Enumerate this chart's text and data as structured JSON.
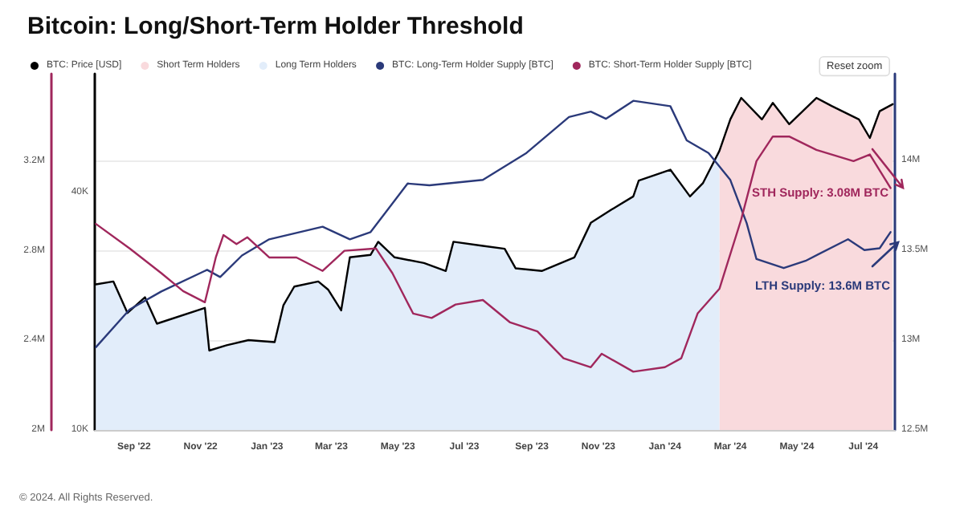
{
  "chart_data": {
    "type": "line",
    "title": "Bitcoin: Long/Short-Term Holder Threshold",
    "annotations": [
      "STH Supply: 3.08M BTC",
      "LTH Supply: 13.6M BTC",
      "Reset zoom",
      "© 2024. All Rights Reserved."
    ],
    "xlim": [
      "2022-07-27",
      "2024-07-30"
    ],
    "xticks": [
      {
        "value": "2022-09-01",
        "label": "Sep '22"
      },
      {
        "value": "2022-11-01",
        "label": "Nov '22"
      },
      {
        "value": "2023-01-01",
        "label": "Jan '23"
      },
      {
        "value": "2023-03-01",
        "label": "Mar '23"
      },
      {
        "value": "2023-05-01",
        "label": "May '23"
      },
      {
        "value": "2023-07-01",
        "label": "Jul '23"
      },
      {
        "value": "2023-09-01",
        "label": "Sep '23"
      },
      {
        "value": "2023-11-01",
        "label": "Nov '23"
      },
      {
        "value": "2024-01-01",
        "label": "Jan '24"
      },
      {
        "value": "2024-03-01",
        "label": "Mar '24"
      },
      {
        "value": "2024-05-01",
        "label": "May '24"
      },
      {
        "value": "2024-07-01",
        "label": "Jul '24"
      }
    ],
    "ylim": [
      2,
      3.59
    ],
    "yticks": [
      {
        "value": 2,
        "label": "2M"
      },
      {
        "value": 2.4,
        "label": "2.4M"
      },
      {
        "value": 2.8,
        "label": "2.8M"
      },
      {
        "value": 3.2,
        "label": "3.2M"
      }
    ],
    "y2lim": [
      10000,
      80000
    ],
    "y2ticks": [
      {
        "value": 10000,
        "label": "10K"
      },
      {
        "value": 40000,
        "label": "40K"
      }
    ],
    "y3lim": [
      12.5,
      14.48
    ],
    "y3ticks": [
      {
        "value": 12.5,
        "label": "12.5M"
      },
      {
        "value": 13,
        "label": "13M"
      },
      {
        "value": 13.5,
        "label": "13.5M"
      },
      {
        "value": 14,
        "label": "14M"
      }
    ],
    "log": "y2",
    "grid": "y",
    "legend": "top left",
    "marker": "none",
    "series": [
      {
        "name": "BTC: Price [USD]",
        "color": "#000000",
        "axis": "y2",
        "x": [
          "2022-07-28",
          "2022-08-13",
          "2022-08-26",
          "2022-09-11",
          "2022-09-22",
          "2022-11-05",
          "2022-11-09",
          "2022-11-25",
          "2022-12-15",
          "2023-01-08",
          "2023-01-16",
          "2023-01-26",
          "2023-02-17",
          "2023-02-26",
          "2023-03-10",
          "2023-03-18",
          "2023-04-06",
          "2023-04-13",
          "2023-04-28",
          "2023-05-25",
          "2023-06-14",
          "2023-06-21",
          "2023-07-18",
          "2023-08-07",
          "2023-08-17",
          "2023-09-10",
          "2023-10-10",
          "2023-10-25",
          "2023-11-13",
          "2023-12-03",
          "2023-12-08",
          "2024-01-06",
          "2024-01-24",
          "2024-02-05",
          "2024-02-20",
          "2024-03-01",
          "2024-03-11",
          "2024-03-30",
          "2024-04-09",
          "2024-04-24",
          "2024-05-19",
          "2024-06-02",
          "2024-06-27",
          "2024-07-07",
          "2024-07-16",
          "2024-07-28"
        ],
        "values": [
          23400,
          23800,
          19800,
          21700,
          18600,
          20400,
          15900,
          16400,
          16900,
          16700,
          20700,
          23100,
          23800,
          22700,
          20100,
          27400,
          27800,
          30000,
          27400,
          26500,
          25300,
          30000,
          29300,
          28800,
          25700,
          25300,
          27400,
          33500,
          36200,
          39100,
          42900,
          45700,
          39100,
          42300,
          51000,
          61300,
          69500,
          61300,
          67500,
          59600,
          69500,
          66300,
          61300,
          55000,
          64300,
          67000
        ]
      },
      {
        "name": "Short Term Holders",
        "color": "#f9dadd",
        "type": "area",
        "axis": "y2",
        "x": [
          "2024-02-20",
          "2024-03-01",
          "2024-03-11",
          "2024-03-30",
          "2024-04-09",
          "2024-04-24",
          "2024-05-19",
          "2024-06-02",
          "2024-06-27",
          "2024-07-07",
          "2024-07-16",
          "2024-07-28"
        ],
        "values": [
          51000,
          61300,
          69500,
          61300,
          67500,
          59600,
          69500,
          66300,
          61300,
          55000,
          64300,
          67000
        ]
      },
      {
        "name": "Long Term Holders",
        "color": "#e2edfa",
        "type": "area",
        "axis": "y2",
        "x": [
          "2022-07-28",
          "2022-08-13",
          "2022-08-26",
          "2022-09-11",
          "2022-09-22",
          "2022-11-05",
          "2022-11-09",
          "2022-11-25",
          "2022-12-15",
          "2023-01-08",
          "2023-01-16",
          "2023-01-26",
          "2023-02-17",
          "2023-02-26",
          "2023-03-10",
          "2023-03-18",
          "2023-04-06",
          "2023-04-13",
          "2023-04-28",
          "2023-05-25",
          "2023-06-14",
          "2023-06-21",
          "2023-07-18",
          "2023-08-07",
          "2023-08-17",
          "2023-09-10",
          "2023-10-10",
          "2023-10-25",
          "2023-11-13",
          "2023-12-03",
          "2023-12-08",
          "2024-01-06",
          "2024-01-24",
          "2024-02-05",
          "2024-02-20"
        ],
        "values": [
          23400,
          23800,
          19800,
          21700,
          18600,
          20400,
          15900,
          16400,
          16900,
          16700,
          20700,
          23100,
          23800,
          22700,
          20100,
          27400,
          27800,
          30000,
          27400,
          26500,
          25300,
          30000,
          29300,
          28800,
          25700,
          25300,
          27400,
          33500,
          36200,
          39100,
          42900,
          45700,
          39100,
          42300,
          51000
        ]
      },
      {
        "name": "BTC: Long-Term Holder Supply [BTC]",
        "color": "#2b3a7a",
        "axis": "y3",
        "x": [
          "2022-07-28",
          "2022-08-28",
          "2022-09-26",
          "2022-11-07",
          "2022-11-19",
          "2022-12-09",
          "2023-01-03",
          "2023-02-21",
          "2023-03-18",
          "2023-04-06",
          "2023-05-10",
          "2023-05-30",
          "2023-07-18",
          "2023-08-27",
          "2023-10-05",
          "2023-10-25",
          "2023-11-08",
          "2023-12-03",
          "2024-01-06",
          "2024-01-21",
          "2024-02-10",
          "2024-03-01",
          "2024-03-16",
          "2024-03-25",
          "2024-04-19",
          "2024-05-09",
          "2024-06-17",
          "2024-07-02",
          "2024-07-16",
          "2024-07-26"
        ],
        "values": [
          12.96,
          13.17,
          13.27,
          13.39,
          13.35,
          13.47,
          13.56,
          13.63,
          13.56,
          13.6,
          13.87,
          13.86,
          13.89,
          14.04,
          14.24,
          14.27,
          14.23,
          14.33,
          14.3,
          14.11,
          14.04,
          13.89,
          13.65,
          13.45,
          13.4,
          13.44,
          13.56,
          13.5,
          13.51,
          13.6
        ]
      },
      {
        "name": "BTC: Short-Term Holder Supply [BTC]",
        "color": "#a0275c",
        "x": [
          "2022-07-28",
          "2022-08-28",
          "2022-09-26",
          "2022-10-16",
          "2022-11-05",
          "2022-11-15",
          "2022-11-22",
          "2022-12-04",
          "2022-12-14",
          "2023-01-03",
          "2023-01-28",
          "2023-02-21",
          "2023-03-13",
          "2023-04-11",
          "2023-04-26",
          "2023-05-15",
          "2023-06-01",
          "2023-06-23",
          "2023-07-18",
          "2023-08-12",
          "2023-09-06",
          "2023-09-30",
          "2023-10-25",
          "2023-11-04",
          "2023-12-03",
          "2024-01-01",
          "2024-01-16",
          "2024-01-31",
          "2024-02-20",
          "2024-03-11",
          "2024-03-25",
          "2024-04-09",
          "2024-04-24",
          "2024-05-19",
          "2024-06-22",
          "2024-07-07",
          "2024-07-26"
        ],
        "values": [
          2.92,
          2.81,
          2.7,
          2.62,
          2.57,
          2.77,
          2.87,
          2.83,
          2.86,
          2.77,
          2.77,
          2.71,
          2.8,
          2.81,
          2.7,
          2.52,
          2.5,
          2.56,
          2.58,
          2.48,
          2.44,
          2.32,
          2.28,
          2.34,
          2.26,
          2.28,
          2.32,
          2.52,
          2.63,
          2.94,
          3.2,
          3.31,
          3.31,
          3.25,
          3.2,
          3.23,
          3.08
        ]
      }
    ]
  }
}
